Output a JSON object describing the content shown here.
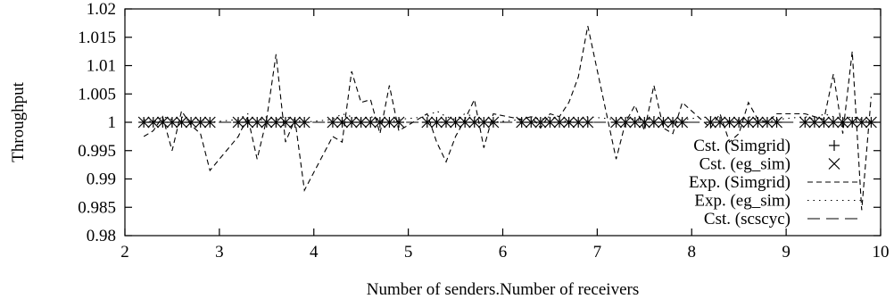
{
  "chart_data": {
    "type": "line",
    "xlabel": "Number of senders.Number of receivers",
    "ylabel": "Throughput",
    "xlim": [
      2,
      10
    ],
    "ylim": [
      0.98,
      1.02
    ],
    "x_ticks": [
      "2",
      "3",
      "4",
      "5",
      "6",
      "7",
      "8",
      "9",
      "10"
    ],
    "y_ticks": [
      "0.98",
      "0.985",
      "0.99",
      "0.995",
      "1",
      "1.005",
      "1.01",
      "1.015",
      "1.02"
    ],
    "grid": false,
    "legend_position": "right",
    "series": [
      {
        "name": "Cst. (Simgrid)",
        "style": "plus-markers",
        "x": [
          2.2,
          2.3,
          2.4,
          2.5,
          2.6,
          2.7,
          2.8,
          2.9,
          3.2,
          3.3,
          3.4,
          3.5,
          3.6,
          3.7,
          3.8,
          3.9,
          4.2,
          4.3,
          4.4,
          4.5,
          4.6,
          4.7,
          4.8,
          4.9,
          5.2,
          5.3,
          5.4,
          5.5,
          5.6,
          5.7,
          5.8,
          5.9,
          6.2,
          6.3,
          6.4,
          6.5,
          6.6,
          6.7,
          6.8,
          6.9,
          7.2,
          7.3,
          7.4,
          7.5,
          7.6,
          7.7,
          7.8,
          7.9,
          8.2,
          8.3,
          8.4,
          8.5,
          8.6,
          8.7,
          8.8,
          8.9,
          9.2,
          9.3,
          9.4,
          9.5,
          9.6,
          9.7,
          9.8,
          9.9
        ],
        "y": [
          1,
          1,
          1,
          1,
          1,
          1,
          1,
          1,
          1,
          1,
          1,
          1,
          1,
          1,
          1,
          1,
          1,
          1,
          1,
          1,
          1,
          1,
          1,
          1,
          1,
          1,
          1,
          1,
          1,
          1,
          1,
          1,
          1,
          1,
          1,
          1,
          1,
          1,
          1,
          1,
          1,
          1,
          1,
          1,
          1,
          1,
          1,
          1,
          1,
          1,
          1,
          1,
          1,
          1,
          1,
          1,
          1,
          1,
          1,
          1,
          1,
          1,
          1,
          1
        ]
      },
      {
        "name": "Cst. (eg_sim)",
        "style": "x-markers",
        "x": [
          2.2,
          2.3,
          2.4,
          2.5,
          2.6,
          2.7,
          2.8,
          2.9,
          3.2,
          3.3,
          3.4,
          3.5,
          3.6,
          3.7,
          3.8,
          3.9,
          4.2,
          4.3,
          4.4,
          4.5,
          4.6,
          4.7,
          4.8,
          4.9,
          5.2,
          5.3,
          5.4,
          5.5,
          5.6,
          5.7,
          5.8,
          5.9,
          6.2,
          6.3,
          6.4,
          6.5,
          6.6,
          6.7,
          6.8,
          6.9,
          7.2,
          7.3,
          7.4,
          7.5,
          7.6,
          7.7,
          7.8,
          7.9,
          8.2,
          8.3,
          8.4,
          8.5,
          8.6,
          8.7,
          8.8,
          8.9,
          9.2,
          9.3,
          9.4,
          9.5,
          9.6,
          9.7,
          9.8,
          9.9
        ],
        "y": [
          1,
          1,
          1,
          1,
          1,
          1,
          1,
          1,
          1,
          1,
          1,
          1,
          1,
          1,
          1,
          1,
          1,
          1,
          1,
          1,
          1,
          1,
          1,
          1,
          1,
          1,
          1,
          1,
          1,
          1,
          1,
          1,
          1,
          1,
          1,
          1,
          1,
          1,
          1,
          1,
          1,
          1,
          1,
          1,
          1,
          1,
          1,
          1,
          1,
          1,
          1,
          1,
          1,
          1,
          1,
          1,
          1,
          1,
          1,
          1,
          1,
          1,
          1,
          1
        ]
      },
      {
        "name": "Exp. (Simgrid)",
        "style": "short-dash",
        "x": [
          2.2,
          2.3,
          2.4,
          2.5,
          2.6,
          2.7,
          2.8,
          2.9,
          3.2,
          3.3,
          3.4,
          3.5,
          3.6,
          3.7,
          3.8,
          3.9,
          4.2,
          4.3,
          4.4,
          4.5,
          4.6,
          4.7,
          4.8,
          4.9,
          5.2,
          5.3,
          5.4,
          5.5,
          5.6,
          5.7,
          5.8,
          5.9,
          6.2,
          6.3,
          6.4,
          6.5,
          6.6,
          6.7,
          6.8,
          6.9,
          7.2,
          7.3,
          7.4,
          7.5,
          7.6,
          7.7,
          7.8,
          7.9,
          8.2,
          8.3,
          8.4,
          8.5,
          8.6,
          8.7,
          8.8,
          8.9,
          9.2,
          9.3,
          9.4,
          9.5,
          9.6,
          9.7,
          9.8,
          9.9
        ],
        "y": [
          0.9975,
          0.9985,
          1.001,
          0.995,
          1.002,
          0.9995,
          0.998,
          0.9915,
          0.9975,
          1.001,
          0.9935,
          1.0005,
          1.012,
          0.9965,
          1.0005,
          0.988,
          0.9975,
          0.9965,
          1.009,
          1.0035,
          1.004,
          0.998,
          1.0065,
          0.9985,
          1.0015,
          0.9965,
          0.993,
          0.9975,
          1.0005,
          1.004,
          0.9955,
          1.0015,
          1.0005,
          1.001,
          0.999,
          1.0015,
          1.001,
          1.0035,
          1.008,
          1.017,
          0.9935,
          1.0,
          1.003,
          0.9985,
          1.0065,
          0.999,
          0.998,
          1.0035,
          0.999,
          1.0015,
          0.9965,
          0.998,
          1.0035,
          1.0005,
          1.0,
          1.0015,
          1.0015,
          1.001,
          1.0005,
          1.0085,
          0.998,
          1.0125,
          0.9845,
          1.0045
        ]
      },
      {
        "name": "Exp. (eg_sim)",
        "style": "dotted",
        "x": [
          2.2,
          2.3,
          2.4,
          2.5,
          2.6,
          2.7,
          2.8,
          2.9,
          3.2,
          3.3,
          3.4,
          3.5,
          3.6,
          3.7,
          3.8,
          3.9,
          4.2,
          4.3,
          4.4,
          4.5,
          4.6,
          4.7,
          4.8,
          4.9,
          5.2,
          5.3,
          5.4,
          5.5,
          5.6,
          5.7,
          5.8,
          5.9,
          6.2,
          6.3,
          6.4,
          6.5,
          6.6,
          6.7,
          6.8,
          6.9,
          7.2,
          7.3,
          7.4,
          7.5,
          7.6,
          7.7,
          7.8,
          7.9,
          8.2,
          8.3,
          8.4,
          8.5,
          8.6,
          8.7,
          8.8,
          8.9,
          9.2,
          9.3,
          9.4,
          9.5,
          9.6,
          9.7,
          9.8,
          9.9
        ],
        "y": [
          1.0005,
          1.0,
          1.001,
          1.0005,
          1.001,
          1.0,
          1.0005,
          1.0,
          1.0005,
          1.0015,
          1.0,
          1.001,
          1.0005,
          1.001,
          1.0005,
          1.0,
          1.0005,
          1.0015,
          1.001,
          1.0005,
          1.001,
          1.0005,
          1.0,
          1.0005,
          1.001,
          1.002,
          1.001,
          1.0005,
          1.0015,
          1.001,
          1.0005,
          1.0,
          1.0005,
          1.001,
          1.0005,
          1.001,
          1.0005,
          1.0,
          1.0005,
          1.001,
          1.0005,
          1.001,
          1.0005,
          1.0,
          1.001,
          1.0005,
          1.0,
          1.0005,
          1.001,
          1.0005,
          1.0,
          1.0005,
          1.001,
          1.0005,
          1.0,
          1.0005,
          1.001,
          1.0005,
          1.0015,
          1.001,
          1.0005,
          1.001,
          1.0005,
          1.0
        ]
      },
      {
        "name": "Cst. (scscyc)",
        "style": "long-dash",
        "x": [
          2.2,
          2.3,
          2.4,
          2.5,
          2.6,
          2.7,
          2.8,
          2.9,
          3.2,
          3.3,
          3.4,
          3.5,
          3.6,
          3.7,
          3.8,
          3.9,
          4.2,
          4.3,
          4.4,
          4.5,
          4.6,
          4.7,
          4.8,
          4.9,
          5.2,
          5.3,
          5.4,
          5.5,
          5.6,
          5.7,
          5.8,
          5.9,
          6.2,
          6.3,
          6.4,
          6.5,
          6.6,
          6.7,
          6.8,
          6.9,
          7.2,
          7.3,
          7.4,
          7.5,
          7.6,
          7.7,
          7.8,
          7.9,
          8.2,
          8.3,
          8.4,
          8.5,
          8.6,
          8.7,
          8.8,
          8.9,
          9.2,
          9.3,
          9.4,
          9.5,
          9.6,
          9.7,
          9.8,
          9.9
        ],
        "y": [
          1,
          1,
          1,
          1,
          1,
          1,
          1,
          1,
          1,
          1,
          1,
          1,
          1,
          1,
          1,
          1,
          1,
          1,
          1,
          1,
          1,
          1,
          1,
          1,
          1,
          1,
          1,
          1,
          1,
          1,
          1,
          1,
          1,
          1,
          1,
          1,
          1,
          1,
          1,
          1,
          1,
          1,
          1,
          1,
          1,
          1,
          1,
          1,
          1,
          1,
          1,
          1,
          1,
          1,
          1,
          1,
          1,
          1,
          1,
          1,
          1,
          1,
          1,
          1
        ]
      }
    ]
  }
}
